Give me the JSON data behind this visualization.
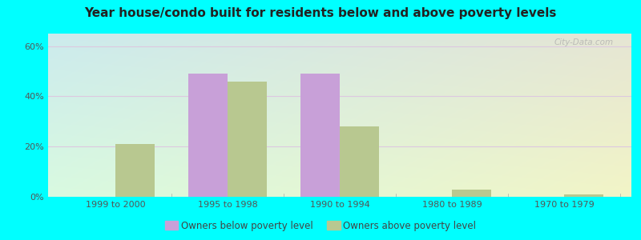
{
  "title": "Year house/condo built for residents below and above poverty levels",
  "categories": [
    "1999 to 2000",
    "1995 to 1998",
    "1990 to 1994",
    "1980 to 1989",
    "1970 to 1979"
  ],
  "below_poverty": [
    0,
    49,
    49,
    0,
    0
  ],
  "above_poverty": [
    21,
    46,
    28,
    3,
    1
  ],
  "below_color": "#c8a0d8",
  "above_color": "#b8c890",
  "ylim": [
    0,
    65
  ],
  "yticks": [
    0,
    20,
    40,
    60
  ],
  "ytick_labels": [
    "0%",
    "20%",
    "40%",
    "60%"
  ],
  "bar_width": 0.35,
  "background_color_outer": "#00ffff",
  "grid_color": "#e0d0e8",
  "legend_below_label": "Owners below poverty level",
  "legend_above_label": "Owners above poverty level",
  "title_fontsize": 11,
  "axis_fontsize": 8,
  "legend_fontsize": 8.5,
  "watermark_text": "City-Data.com"
}
